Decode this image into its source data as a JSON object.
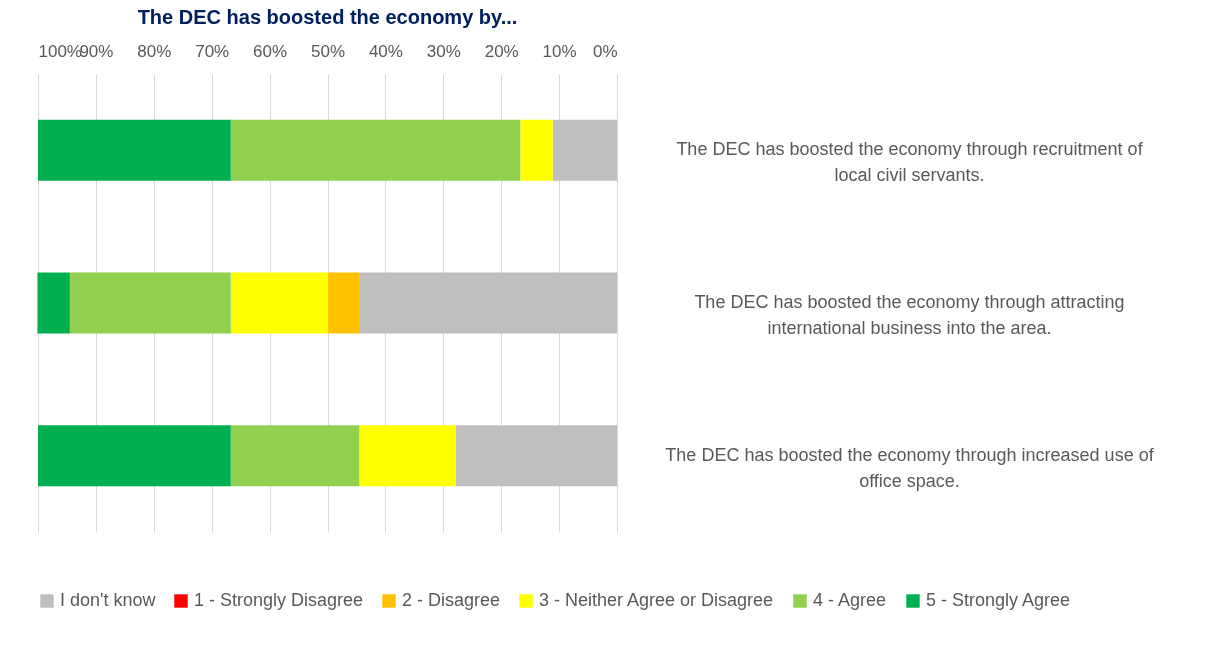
{
  "chart_data": {
    "type": "bar",
    "title": "The DEC has boosted the economy by...",
    "orientation": "horizontal",
    "stacked": true,
    "categories": [
      "The DEC has boosted the economy through recruitment of local civil servants.",
      "The DEC has boosted the economy through attracting international business into the area.",
      "The DEC has boosted the economy through increased use of office space."
    ],
    "series": [
      {
        "name": "I don't know",
        "color": "#bfbfbf",
        "values": [
          11.1,
          44.4,
          27.8
        ]
      },
      {
        "name": "1 - Strongly Disagree",
        "color": "#ff0000",
        "values": [
          0,
          0,
          0
        ]
      },
      {
        "name": "2 - Disagree",
        "color": "#ffc000",
        "values": [
          0,
          5.6,
          0
        ]
      },
      {
        "name": "3 - Neither Agree or Disagree",
        "color": "#ffff00",
        "values": [
          5.6,
          16.7,
          16.7
        ]
      },
      {
        "name": "4 - Agree",
        "color": "#92d050",
        "values": [
          50,
          27.8,
          22.2
        ]
      },
      {
        "name": "5 - Strongly Agree",
        "color": "#00b050",
        "values": [
          33.3,
          5.6,
          33.3
        ]
      }
    ],
    "xlim": [
      100,
      0
    ],
    "xticks": [
      {
        "value": 100,
        "label": "100%"
      },
      {
        "value": 90,
        "label": "90%"
      },
      {
        "value": 80,
        "label": "80%"
      },
      {
        "value": 70,
        "label": "70%"
      },
      {
        "value": 60,
        "label": "60%"
      },
      {
        "value": 50,
        "label": "50%"
      },
      {
        "value": 40,
        "label": "40%"
      },
      {
        "value": 30,
        "label": "30%"
      },
      {
        "value": 20,
        "label": "20%"
      },
      {
        "value": 10,
        "label": "10%"
      },
      {
        "value": 0,
        "label": "0%"
      }
    ],
    "grid": "x",
    "legend": "bottom"
  }
}
